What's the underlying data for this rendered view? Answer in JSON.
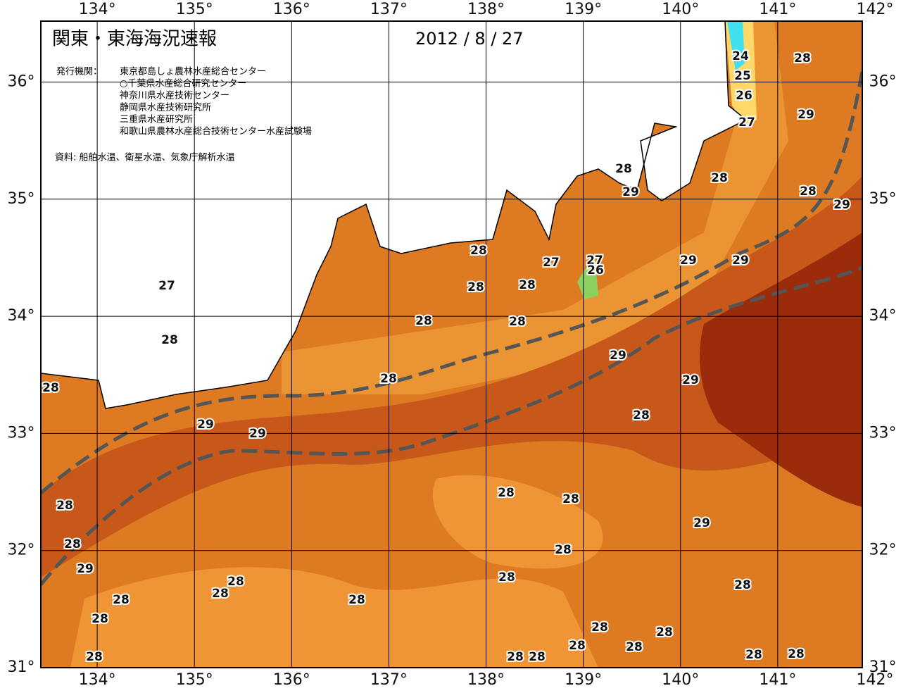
{
  "header": {
    "title": "関東・東海海況速報",
    "date": "2012 / 8 / 27",
    "issuer_label": "発行機関：",
    "issuers": [
      "東京都島しょ農林水産総合センター",
      "○千葉県水産総合研究センター",
      "神奈川県水産技術センター",
      "静岡県水産技術研究所",
      "三重県水産研究所",
      "和歌山県農林水産総合技術センター水産試験場"
    ],
    "source": "資料: 船舶水温、衛星水温、気象庁解析水温"
  },
  "map": {
    "xlim": [
      133.42,
      141.87
    ],
    "ylim": [
      31,
      36.52
    ],
    "xticks": [
      {
        "value": 134,
        "label": "134°"
      },
      {
        "value": 135,
        "label": "135°"
      },
      {
        "value": 136,
        "label": "136°"
      },
      {
        "value": 137,
        "label": "137°"
      },
      {
        "value": 138,
        "label": "138°"
      },
      {
        "value": 139,
        "label": "139°"
      },
      {
        "value": 140,
        "label": "140°"
      },
      {
        "value": 141,
        "label": "141°"
      },
      {
        "value": 142,
        "label": "142°"
      }
    ],
    "yticks": [
      {
        "value": 31,
        "label": "31°"
      },
      {
        "value": 32,
        "label": "32°"
      },
      {
        "value": 33,
        "label": "33°"
      },
      {
        "value": 34,
        "label": "34°"
      },
      {
        "value": 35,
        "label": "35°"
      },
      {
        "value": 36,
        "label": "36°"
      }
    ],
    "contour_labels": [
      24,
      25,
      26,
      27,
      28,
      29,
      28,
      28,
      29,
      28,
      29,
      27,
      26,
      27,
      28,
      28,
      28,
      28,
      28,
      29,
      29,
      29,
      29,
      28,
      28,
      27,
      28,
      28,
      29,
      29,
      28,
      28,
      29,
      28,
      28,
      28,
      29,
      28,
      28,
      28,
      28,
      28,
      28,
      28,
      28,
      28,
      28,
      28,
      28,
      28,
      28,
      28,
      28
    ]
  }
}
